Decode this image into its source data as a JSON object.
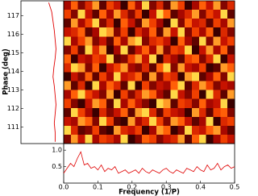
{
  "chart_data": [
    {
      "type": "heatmap",
      "ylabel": "Phase (deg)",
      "xlim": [
        0,
        0.5
      ],
      "ylim": [
        110.1,
        117.8
      ],
      "yticks": [
        111,
        112,
        113,
        114,
        115,
        116,
        117
      ],
      "z": [
        [
          3,
          7,
          2,
          5,
          8,
          1,
          6,
          4,
          0,
          7,
          3,
          9,
          2,
          5,
          1,
          8,
          6,
          0,
          3,
          7,
          4,
          8,
          2,
          5
        ],
        [
          6,
          2,
          9,
          4,
          1,
          7,
          3,
          8,
          5,
          2,
          6,
          0,
          4,
          9,
          7,
          1,
          3,
          5,
          8,
          2,
          6,
          4,
          9,
          1
        ],
        [
          1,
          8,
          3,
          6,
          9,
          2,
          5,
          0,
          7,
          4,
          1,
          8,
          6,
          3,
          0,
          9,
          2,
          7,
          4,
          5,
          1,
          6,
          3,
          8
        ],
        [
          4,
          5,
          7,
          1,
          3,
          9,
          8,
          2,
          6,
          0,
          5,
          3,
          7,
          1,
          8,
          4,
          9,
          2,
          6,
          3,
          7,
          0,
          5,
          2
        ],
        [
          9,
          3,
          6,
          8,
          2,
          4,
          1,
          7,
          3,
          8,
          9,
          2,
          5,
          6,
          4,
          0,
          7,
          3,
          1,
          9,
          2,
          8,
          4,
          6
        ],
        [
          2,
          6,
          1,
          9,
          5,
          8,
          0,
          3,
          9,
          1,
          4,
          7,
          3,
          8,
          2,
          6,
          5,
          9,
          0,
          4,
          8,
          3,
          7,
          1
        ],
        [
          7,
          0,
          4,
          3,
          6,
          5,
          9,
          1,
          2,
          6,
          8,
          4,
          9,
          0,
          5,
          3,
          1,
          6,
          7,
          2,
          5,
          9,
          0,
          4
        ],
        [
          5,
          9,
          8,
          2,
          7,
          0,
          4,
          6,
          8,
          3,
          2,
          5,
          1,
          7,
          9,
          2,
          8,
          4,
          3,
          6,
          0,
          1,
          8,
          7
        ],
        [
          0,
          4,
          2,
          7,
          1,
          6,
          3,
          9,
          4,
          5,
          7,
          1,
          8,
          2,
          6,
          5,
          0,
          8,
          9,
          1,
          3,
          7,
          2,
          9
        ],
        [
          8,
          1,
          5,
          0,
          9,
          3,
          7,
          5,
          1,
          9,
          0,
          6,
          2,
          4,
          3,
          7,
          9,
          1,
          5,
          8,
          6,
          2,
          4,
          3
        ],
        [
          3,
          7,
          9,
          6,
          4,
          2,
          8,
          0,
          6,
          2,
          5,
          8,
          7,
          3,
          1,
          9,
          4,
          2,
          6,
          0,
          9,
          5,
          1,
          8
        ],
        [
          6,
          2,
          0,
          4,
          8,
          7,
          1,
          9,
          3,
          7,
          4,
          2,
          0,
          9,
          8,
          1,
          6,
          5,
          2,
          7,
          3,
          4,
          9,
          0
        ],
        [
          1,
          9,
          6,
          3,
          0,
          5,
          2,
          4,
          7,
          1,
          8,
          9,
          5,
          1,
          6,
          4,
          3,
          0,
          8,
          5,
          1,
          6,
          7,
          2
        ],
        [
          4,
          3,
          8,
          7,
          2,
          9,
          6,
          1,
          0,
          8,
          3,
          5,
          9,
          6,
          2,
          8,
          7,
          4,
          1,
          3,
          9,
          0,
          5,
          6
        ],
        [
          9,
          5,
          1,
          2,
          6,
          1,
          0,
          8,
          5,
          4,
          6,
          0,
          3,
          8,
          7,
          0,
          2,
          9,
          5,
          4,
          7,
          8,
          3,
          1
        ],
        [
          2,
          8,
          4,
          9,
          3,
          6,
          5,
          3,
          9,
          0,
          2,
          7,
          6,
          2,
          4,
          5,
          8,
          1,
          7,
          9,
          0,
          3,
          6,
          4
        ]
      ]
    },
    {
      "type": "profile",
      "color": "#e00000",
      "xlim": [
        0,
        1
      ],
      "ylim": [
        110.1,
        117.8
      ],
      "y": [
        110.2,
        110.7,
        111.2,
        111.7,
        112.2,
        112.7,
        113.2,
        113.7,
        114.2,
        114.7,
        115.2,
        115.7,
        116.2,
        116.7,
        117.2,
        117.7
      ],
      "values": [
        0.8,
        0.8,
        0.78,
        0.8,
        0.82,
        0.8,
        0.78,
        0.75,
        0.77,
        0.8,
        0.82,
        0.8,
        0.78,
        0.75,
        0.72,
        0.65
      ]
    },
    {
      "type": "line",
      "xlabel": "Frequency (1/P)",
      "color": "#e00000",
      "xlim": [
        0,
        0.5
      ],
      "ylim": [
        0,
        1.2
      ],
      "xticks": [
        {
          "value": 0,
          "label": "0.0"
        },
        0.1,
        0.2,
        0.3,
        0.4,
        0.5
      ],
      "yticks": [
        0.5,
        {
          "value": 1,
          "label": "1.0"
        }
      ],
      "x": [
        0,
        0.01,
        0.02,
        0.03,
        0.04,
        0.05,
        0.06,
        0.07,
        0.08,
        0.09,
        0.1,
        0.11,
        0.12,
        0.13,
        0.14,
        0.15,
        0.16,
        0.17,
        0.18,
        0.19,
        0.2,
        0.21,
        0.22,
        0.23,
        0.24,
        0.25,
        0.26,
        0.27,
        0.28,
        0.29,
        0.3,
        0.31,
        0.32,
        0.33,
        0.34,
        0.35,
        0.36,
        0.37,
        0.38,
        0.39,
        0.4,
        0.41,
        0.42,
        0.43,
        0.44,
        0.45,
        0.46,
        0.47,
        0.48,
        0.49,
        0.5
      ],
      "values": [
        0.3,
        0.45,
        0.6,
        0.5,
        0.75,
        0.95,
        0.55,
        0.6,
        0.45,
        0.5,
        0.4,
        0.55,
        0.35,
        0.45,
        0.4,
        0.5,
        0.3,
        0.35,
        0.4,
        0.3,
        0.35,
        0.4,
        0.3,
        0.45,
        0.35,
        0.3,
        0.4,
        0.35,
        0.3,
        0.4,
        0.45,
        0.35,
        0.3,
        0.4,
        0.35,
        0.3,
        0.45,
        0.4,
        0.35,
        0.5,
        0.4,
        0.35,
        0.55,
        0.4,
        0.45,
        0.6,
        0.4,
        0.5,
        0.55,
        0.45,
        0.5
      ]
    }
  ]
}
